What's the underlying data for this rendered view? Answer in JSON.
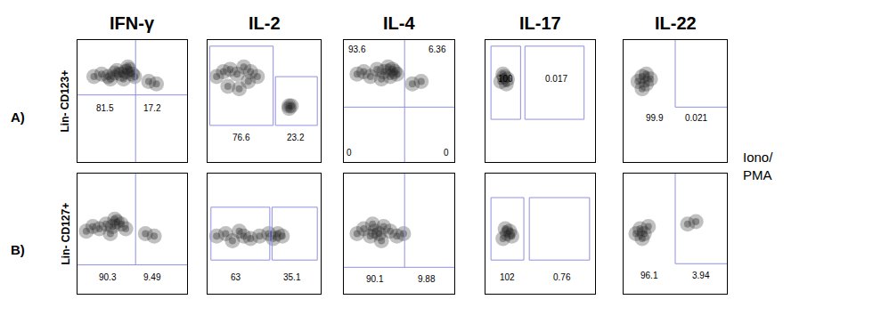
{
  "row_labels": [
    "A)",
    "B)"
  ],
  "side_label": [
    "Iono/",
    "PMA"
  ],
  "chart_data": [
    {
      "type": "density",
      "title": "IFN-γ",
      "ylabel": "Lin- CD123+",
      "xlim": [
        0,
        100
      ],
      "ylim": [
        0,
        100
      ],
      "tick_labels": false,
      "color": "#1e1e1e",
      "x": [
        15,
        22,
        28,
        34,
        40,
        44,
        47,
        50,
        42,
        36,
        30,
        46,
        52,
        65,
        72
      ],
      "y": [
        70,
        72,
        70,
        73,
        72,
        74,
        76,
        72,
        68,
        75,
        68,
        78,
        70,
        66,
        64
      ],
      "gates": {
        "lines": [
          [
            53,
            0,
            53,
            100
          ],
          [
            0,
            55,
            100,
            55
          ]
        ],
        "boxes": []
      },
      "annotations": [
        {
          "value": 81.5,
          "x": 25,
          "y": 44
        },
        {
          "value": 17.2,
          "x": 68,
          "y": 44
        }
      ]
    },
    {
      "type": "density",
      "title": "IL-2",
      "xlim": [
        0,
        100
      ],
      "ylim": [
        0,
        100
      ],
      "tick_labels": false,
      "color": "#1e1e1e",
      "x": [
        8,
        14,
        20,
        26,
        32,
        38,
        44,
        18,
        28,
        36,
        72,
        72,
        74
      ],
      "y": [
        70,
        74,
        76,
        72,
        78,
        74,
        70,
        62,
        60,
        66,
        46,
        44,
        46
      ],
      "gates": {
        "lines": [],
        "boxes": [
          [
            2,
            30,
            58,
            95
          ],
          [
            60,
            30,
            97,
            70
          ]
        ]
      },
      "annotations": [
        {
          "value": 76.6,
          "x": 30,
          "y": 20
        },
        {
          "value": 23.2,
          "x": 78,
          "y": 20
        }
      ]
    },
    {
      "type": "density",
      "title": "IL-4",
      "xlim": [
        0,
        100
      ],
      "ylim": [
        0,
        100
      ],
      "tick_labels": false,
      "color": "#1e1e1e",
      "x": [
        12,
        18,
        24,
        30,
        36,
        40,
        44,
        46,
        48,
        42,
        34,
        62,
        70
      ],
      "y": [
        72,
        74,
        70,
        76,
        74,
        78,
        76,
        74,
        72,
        70,
        68,
        64,
        66
      ],
      "gates": {
        "lines": [
          [
            55,
            0,
            55,
            100
          ],
          [
            0,
            45,
            100,
            45
          ]
        ],
        "boxes": []
      },
      "annotations": [
        {
          "value": 93.6,
          "x": 12,
          "y": 92
        },
        {
          "value": 6.36,
          "x": 85,
          "y": 92
        },
        {
          "value": 0,
          "x": 5,
          "y": 8
        },
        {
          "value": 0,
          "x": 93,
          "y": 8
        }
      ]
    },
    {
      "type": "density",
      "title": "IL-17",
      "xlim": [
        0,
        100
      ],
      "ylim": [
        0,
        100
      ],
      "tick_labels": false,
      "color": "#1e1e1e",
      "x": [
        14,
        17,
        20,
        16,
        19
      ],
      "y": [
        66,
        70,
        68,
        72,
        64
      ],
      "gates": {
        "lines": [],
        "boxes": [
          [
            5,
            35,
            32,
            95
          ],
          [
            36,
            35,
            90,
            95
          ]
        ]
      },
      "annotations": [
        {
          "value": 100,
          "x": 18,
          "y": 68
        },
        {
          "value": 0.017,
          "x": 65,
          "y": 68
        }
      ]
    },
    {
      "type": "density",
      "title": "IL-22",
      "xlim": [
        0,
        100
      ],
      "ylim": [
        0,
        100
      ],
      "tick_labels": false,
      "color": "#1e1e1e",
      "x": [
        14,
        18,
        22,
        26,
        18,
        22
      ],
      "y": [
        66,
        70,
        64,
        68,
        60,
        72
      ],
      "gates": {
        "lines": [
          [
            50,
            45,
            50,
            100
          ],
          [
            50,
            45,
            100,
            45
          ]
        ],
        "boxes": []
      },
      "annotations": [
        {
          "value": 99.9,
          "x": 30,
          "y": 36
        },
        {
          "value": 0.021,
          "x": 70,
          "y": 36
        }
      ]
    },
    {
      "type": "density",
      "ylabel": "Lin- CD127+",
      "xlim": [
        0,
        100
      ],
      "ylim": [
        0,
        100
      ],
      "tick_labels": false,
      "color": "#1e1e1e",
      "x": [
        8,
        14,
        20,
        26,
        32,
        36,
        40,
        44,
        30,
        34,
        62,
        70
      ],
      "y": [
        52,
        56,
        54,
        58,
        56,
        60,
        58,
        54,
        50,
        62,
        50,
        48
      ],
      "gates": {
        "lines": [
          [
            53,
            24,
            53,
            100
          ],
          [
            0,
            24,
            100,
            24
          ]
        ],
        "boxes": []
      },
      "annotations": [
        {
          "value": 90.3,
          "x": 28,
          "y": 14
        },
        {
          "value": 9.49,
          "x": 68,
          "y": 14
        }
      ]
    },
    {
      "type": "density",
      "xlim": [
        0,
        100
      ],
      "ylim": [
        0,
        100
      ],
      "tick_labels": false,
      "color": "#1e1e1e",
      "x": [
        8,
        16,
        22,
        28,
        32,
        38,
        46,
        54,
        58,
        62,
        66
      ],
      "y": [
        48,
        50,
        44,
        52,
        48,
        46,
        48,
        50,
        46,
        50,
        48
      ],
      "gates": {
        "lines": [],
        "boxes": [
          [
            3,
            28,
            55,
            72
          ],
          [
            57,
            28,
            97,
            72
          ]
        ]
      },
      "annotations": [
        {
          "value": 63,
          "x": 25,
          "y": 14
        },
        {
          "value": 35.1,
          "x": 75,
          "y": 14
        }
      ]
    },
    {
      "type": "density",
      "xlim": [
        0,
        100
      ],
      "ylim": [
        0,
        100
      ],
      "tick_labels": false,
      "color": "#1e1e1e",
      "x": [
        12,
        18,
        24,
        28,
        32,
        36,
        42,
        48,
        54,
        26,
        34
      ],
      "y": [
        50,
        54,
        48,
        52,
        50,
        56,
        52,
        48,
        50,
        58,
        44
      ],
      "gates": {
        "lines": [
          [
            55,
            22,
            55,
            100
          ],
          [
            0,
            22,
            100,
            22
          ]
        ],
        "boxes": []
      },
      "annotations": [
        {
          "value": 90.1,
          "x": 28,
          "y": 12
        },
        {
          "value": 9.88,
          "x": 75,
          "y": 12
        }
      ]
    },
    {
      "type": "density",
      "xlim": [
        0,
        100
      ],
      "ylim": [
        0,
        100
      ],
      "tick_labels": false,
      "color": "#1e1e1e",
      "x": [
        16,
        20,
        24,
        18,
        22
      ],
      "y": [
        46,
        50,
        48,
        54,
        52
      ],
      "gates": {
        "lines": [],
        "boxes": [
          [
            5,
            28,
            35,
            80
          ],
          [
            40,
            28,
            95,
            80
          ]
        ]
      },
      "annotations": [
        {
          "value": 102,
          "x": 20,
          "y": 14
        },
        {
          "value": 0.76,
          "x": 70,
          "y": 14
        }
      ]
    },
    {
      "type": "density",
      "xlim": [
        0,
        100
      ],
      "ylim": [
        0,
        100
      ],
      "tick_labels": false,
      "color": "#1e1e1e",
      "x": [
        12,
        16,
        20,
        24,
        18,
        62,
        70
      ],
      "y": [
        50,
        54,
        50,
        56,
        46,
        58,
        60
      ],
      "gates": {
        "lines": [
          [
            50,
            25,
            50,
            100
          ],
          [
            50,
            25,
            100,
            25
          ]
        ],
        "boxes": []
      },
      "annotations": [
        {
          "value": 96.1,
          "x": 25,
          "y": 15
        },
        {
          "value": 3.94,
          "x": 75,
          "y": 15
        }
      ]
    }
  ]
}
